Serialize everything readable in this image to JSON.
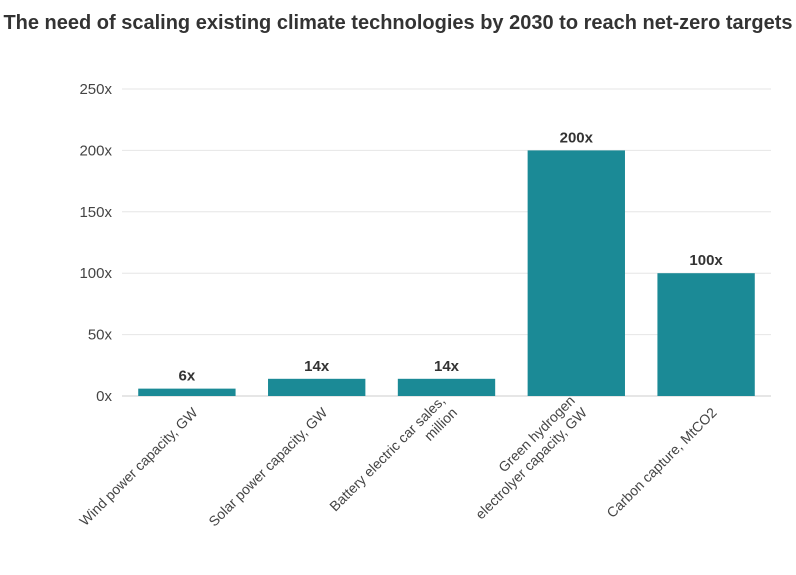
{
  "chart_data": {
    "type": "bar",
    "title": "The need of scaling existing climate technologies by 2030 to reach net-zero targets",
    "xlabel": "",
    "ylabel": "",
    "categories": [
      [
        "Wind power capacity, GW"
      ],
      [
        "Solar power capacity, GW"
      ],
      [
        "Battery electric car sales,",
        "million"
      ],
      [
        "Green hydrogen",
        "electrolyer capacity, GW"
      ],
      [
        "Carbon capture, MtCO2"
      ]
    ],
    "values": [
      6,
      14,
      14,
      200,
      100
    ],
    "data_labels": [
      "6x",
      "14x",
      "14x",
      "200x",
      "100x"
    ],
    "ylim": [
      0,
      250
    ],
    "yticks": [
      0,
      50,
      100,
      150,
      200,
      250
    ],
    "ytick_labels": [
      "0x",
      "50x",
      "100x",
      "150x",
      "200x",
      "250x"
    ],
    "grid": true,
    "bar_color": "#1b8a96"
  }
}
